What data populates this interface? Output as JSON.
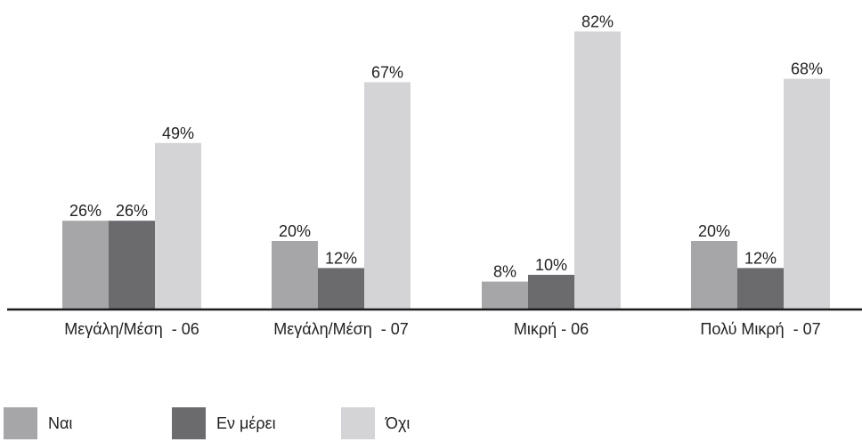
{
  "chart_data": {
    "type": "bar",
    "categories": [
      "Μεγάλη/Μέση  - 06",
      "Μεγάλη/Μέση  - 07",
      "Μικρή - 06",
      "Πολύ Μικρή  - 07"
    ],
    "series": [
      {
        "name": "Ναι",
        "values": [
          26,
          20,
          8,
          20
        ],
        "labels": [
          "26%",
          "20%",
          "8%",
          "20%"
        ],
        "color": "#a6a6a8"
      },
      {
        "name": "Εν μέρει",
        "values": [
          26,
          12,
          10,
          12
        ],
        "labels": [
          "26%",
          "12%",
          "10%",
          "12%"
        ],
        "color": "#6b6b6d"
      },
      {
        "name": "Όχι",
        "values": [
          49,
          67,
          82,
          68
        ],
        "labels": [
          "49%",
          "67%",
          "82%",
          "68%"
        ],
        "color": "#d4d4d6"
      }
    ],
    "ylim": [
      0,
      100
    ],
    "grid": false,
    "legend_position": "bottom-left"
  }
}
